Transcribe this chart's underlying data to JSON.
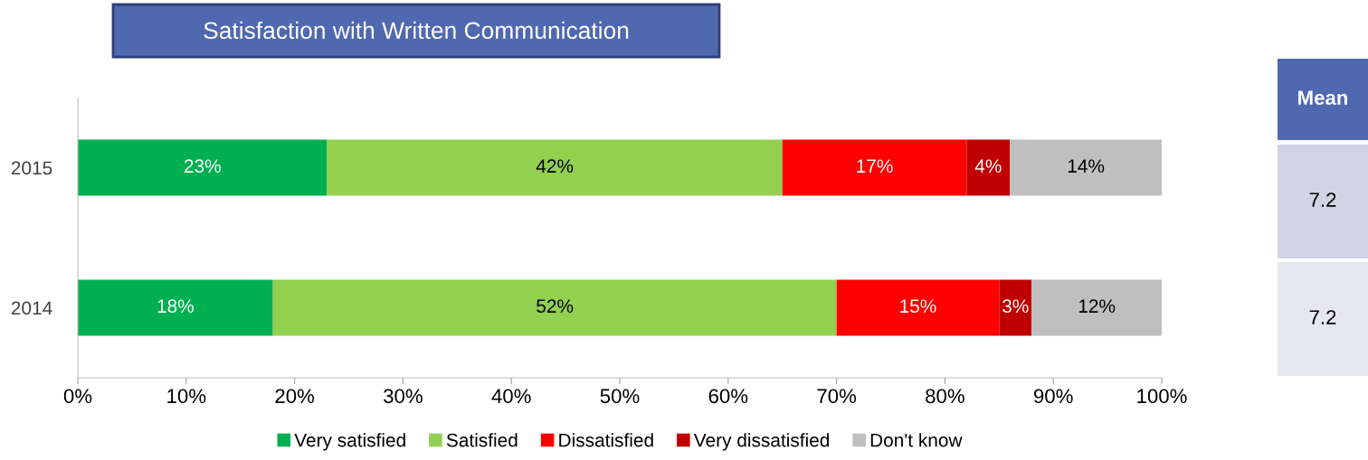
{
  "chart_data": [
    {
      "type": "bar",
      "title": "Satisfaction with Written Communication",
      "orientation": "horizontal",
      "stacked": true,
      "categories": [
        "2015",
        "2014"
      ],
      "series": [
        {
          "name": "Very satisfied",
          "color": "#00b050",
          "values": [
            23,
            18
          ],
          "value_labels": [
            "23%",
            "18%"
          ]
        },
        {
          "name": "Satisfied",
          "color": "#92d050",
          "values": [
            42,
            52
          ],
          "value_labels": [
            "42%",
            "52%"
          ]
        },
        {
          "name": "Dissatisfied",
          "color": "#ff0000",
          "values": [
            17,
            15
          ],
          "value_labels": [
            "17%",
            "15%"
          ]
        },
        {
          "name": "Very dissatisfied",
          "color": "#c00000",
          "values": [
            4,
            3
          ],
          "value_labels": [
            "4%",
            "3%"
          ]
        },
        {
          "name": "Don't know",
          "color": "#bfbfbf",
          "values": [
            14,
            12
          ],
          "value_labels": [
            "14%",
            "12%"
          ]
        }
      ],
      "xlim": [
        0,
        100
      ],
      "xticks": [
        {
          "value": 0,
          "label": "0%"
        },
        {
          "value": 10,
          "label": "10%"
        },
        {
          "value": 20,
          "label": "20%"
        },
        {
          "value": 30,
          "label": "30%"
        },
        {
          "value": 40,
          "label": "40%"
        },
        {
          "value": 50,
          "label": "50%"
        },
        {
          "value": 60,
          "label": "60%"
        },
        {
          "value": 70,
          "label": "70%"
        },
        {
          "value": 80,
          "label": "80%"
        },
        {
          "value": 90,
          "label": "90%"
        },
        {
          "value": 100,
          "label": "100%"
        }
      ],
      "grid": false,
      "legend": "bottom"
    },
    {
      "type": "other",
      "title": "Mean",
      "annotations": [
        "7.2",
        "7.2"
      ]
    }
  ]
}
